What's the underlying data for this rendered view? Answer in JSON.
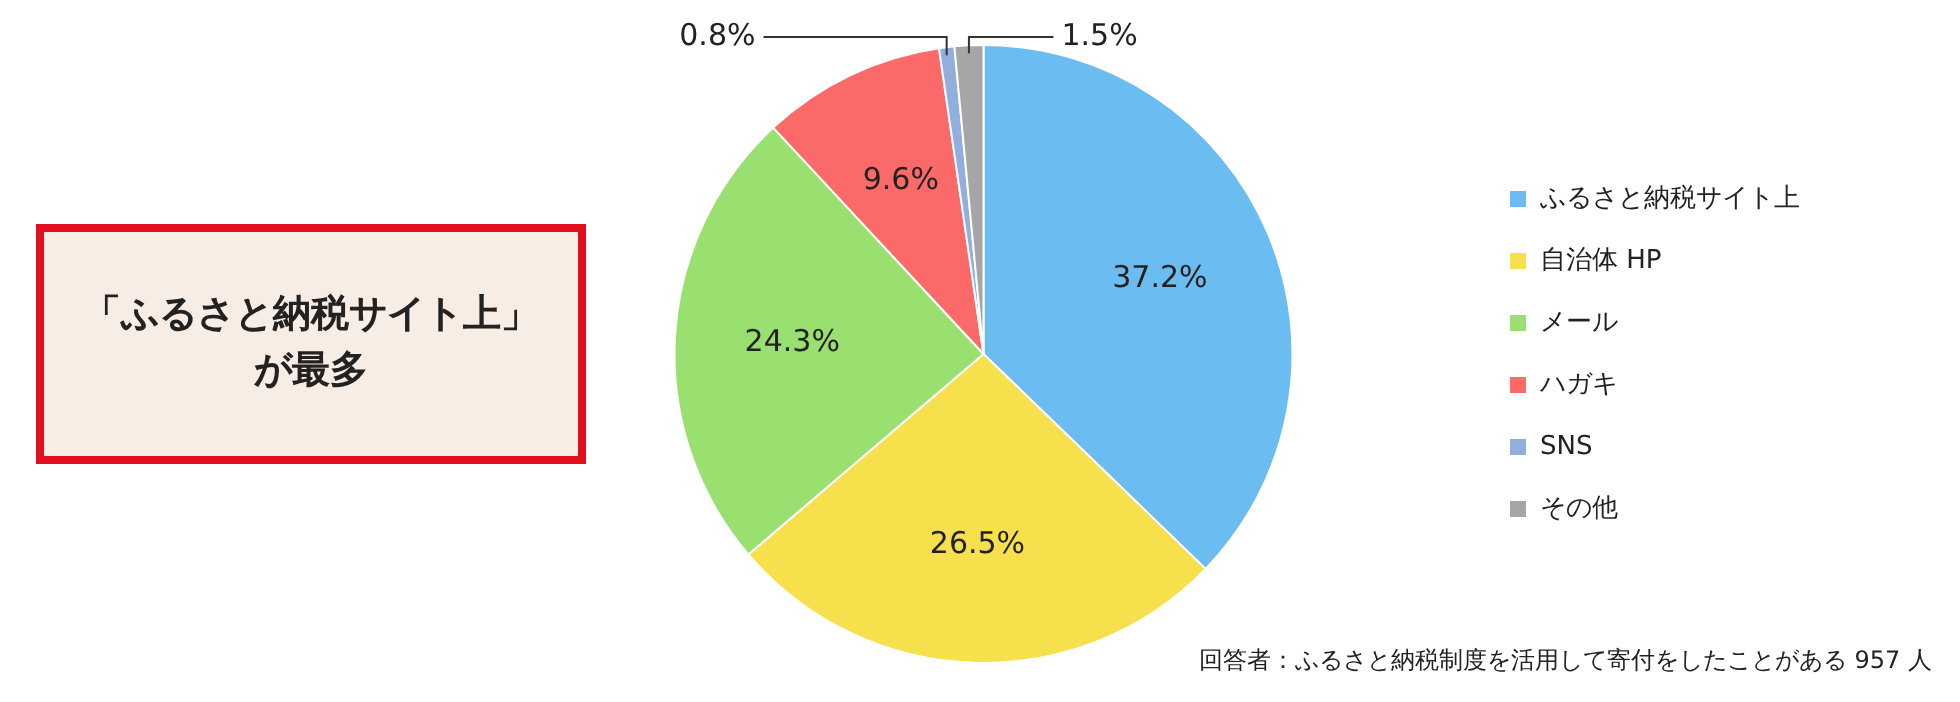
{
  "chart_data": {
    "type": "pie",
    "categories": [
      "ふるさと納税サイト上",
      "自治体 HP",
      "メール",
      "ハガキ",
      "SNS",
      "その他"
    ],
    "values": [
      37.2,
      26.5,
      24.3,
      9.6,
      0.8,
      1.5
    ],
    "value_labels": [
      "37.2%",
      "26.5%",
      "24.3%",
      "9.6%",
      "0.8%",
      "1.5%"
    ],
    "colors": [
      "#6bbcf1",
      "#f6e04b",
      "#9ae070",
      "#fb6a69",
      "#92aedd",
      "#a6a6a6"
    ],
    "legend": "right",
    "annotations": [
      "「ふるさと納税サイト上」",
      "が最多",
      "回答者：ふるさと納税制度を活用して寄付をしたことがある 957 人"
    ]
  }
}
